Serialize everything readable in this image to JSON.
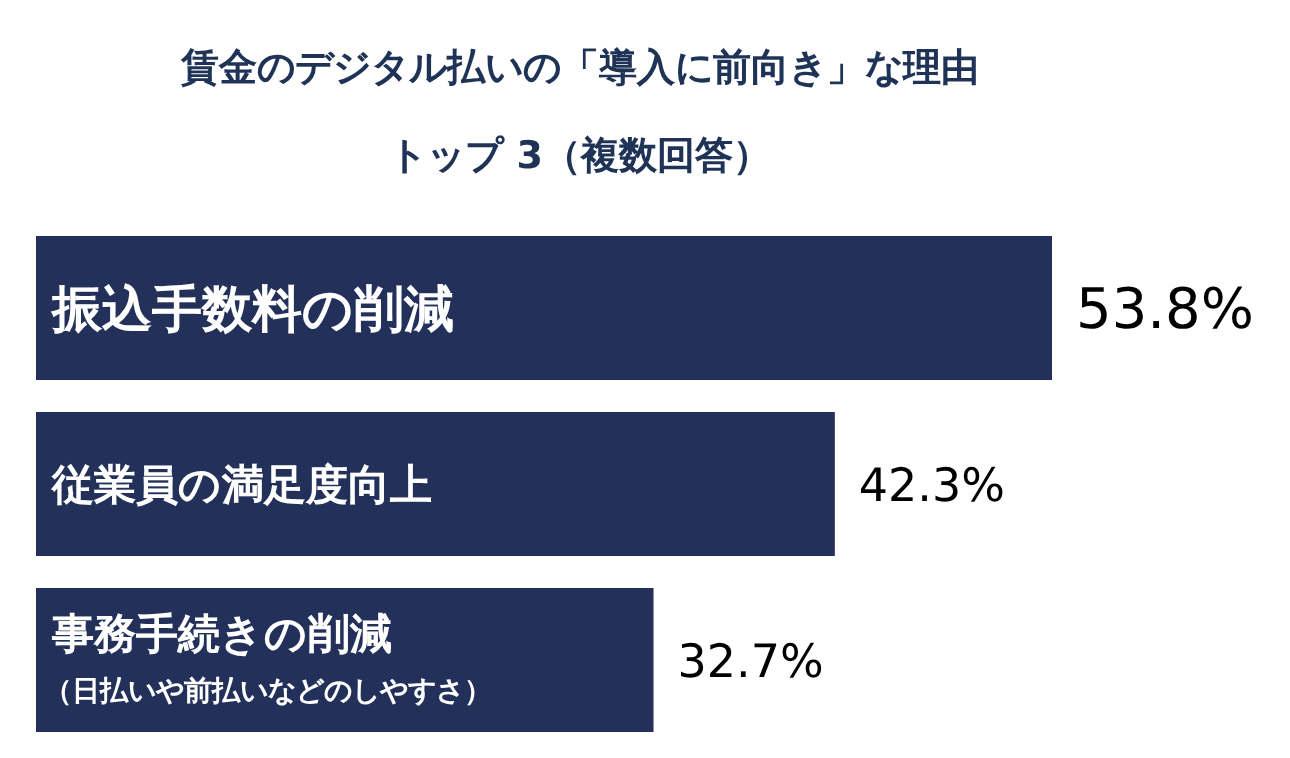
{
  "chart_data": {
    "type": "bar",
    "orientation": "horizontal",
    "title": "賃金のデジタル払いの「導入に前向き」な理由",
    "subtitle": "トップ 3（複数回答）",
    "categories": [
      "振込手数料の削減",
      "従業員の満足度向上",
      "事務手続きの削減（日払いや前払いなどのしやすさ）"
    ],
    "values": [
      53.8,
      42.3,
      32.7
    ],
    "value_labels": [
      "53.8%",
      "42.3%",
      "32.7%"
    ],
    "color": "#22305a"
  }
}
